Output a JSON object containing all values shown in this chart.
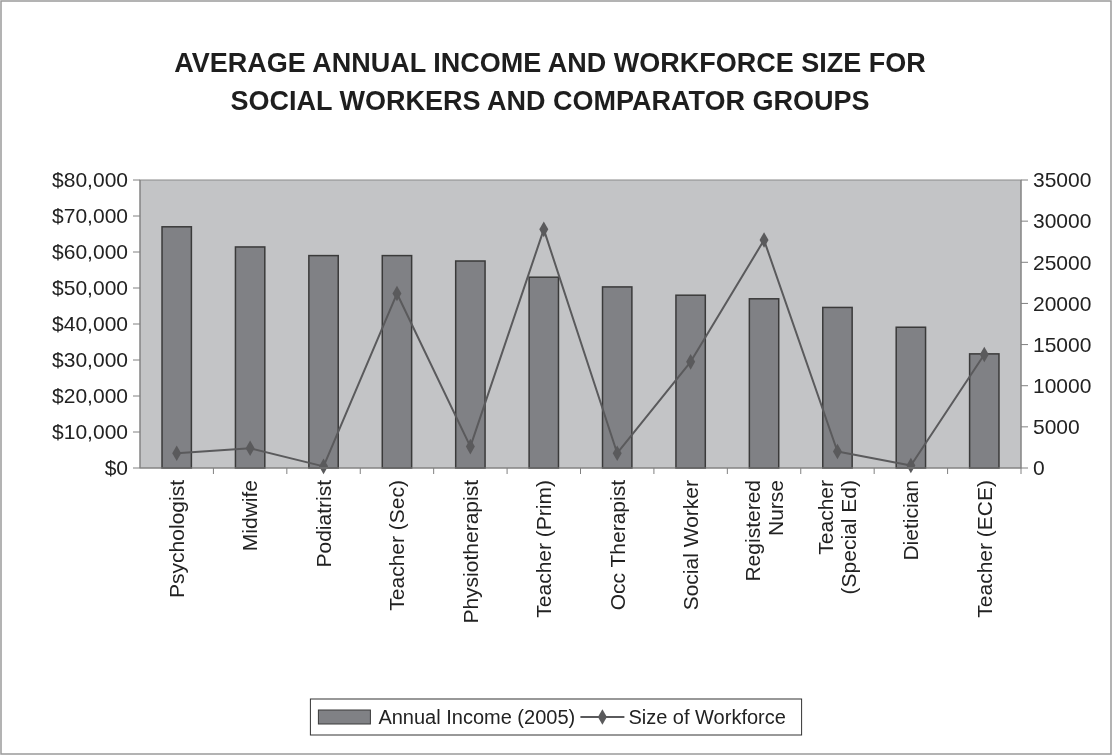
{
  "chart_data": {
    "type": "bar",
    "title": "AVERAGE ANNUAL INCOME AND WORKFORCE SIZE FOR SOCIAL WORKERS AND COMPARATOR GROUPS",
    "categories": [
      "Psychologist",
      "Midwife",
      "Podiatrist",
      "Teacher (Sec)",
      "Physiotherapist",
      "Teacher (Prim)",
      "Occ Therapist",
      "Social Worker",
      "Registered Nurse",
      "Teacher (Special Ed)",
      "Dietician",
      "Teacher (ECE)"
    ],
    "series": [
      {
        "name": "Annual Income (2005)",
        "color": "#808185",
        "values": [
          67000,
          61400,
          59000,
          59000,
          57500,
          53000,
          50300,
          48000,
          47000,
          44600,
          39100,
          31700
        ]
      },
      {
        "name": "Size of Workforce",
        "type": "line",
        "axis": "y2",
        "color": "#5a5a5c",
        "values": [
          1800,
          2400,
          200,
          21200,
          2600,
          29000,
          1800,
          12900,
          27700,
          2000,
          300,
          13800
        ]
      }
    ],
    "ylim": [
      0,
      80000
    ],
    "yticks": [
      {
        "value": 0,
        "label": "$0"
      },
      {
        "value": 10000,
        "label": "$10,000"
      },
      {
        "value": 20000,
        "label": "$20,000"
      },
      {
        "value": 30000,
        "label": "$30,000"
      },
      {
        "value": 40000,
        "label": "$40,000"
      },
      {
        "value": 50000,
        "label": "$50,000"
      },
      {
        "value": 60000,
        "label": "$60,000"
      },
      {
        "value": 70000,
        "label": "$70,000"
      },
      {
        "value": 80000,
        "label": "$80,000"
      }
    ],
    "y2lim": [
      0,
      35000
    ],
    "y2ticks": [
      0,
      5000,
      10000,
      15000,
      20000,
      25000,
      30000,
      35000
    ],
    "grid": false,
    "legend": "bottom",
    "marker": "diamond",
    "line_style": "solid"
  }
}
